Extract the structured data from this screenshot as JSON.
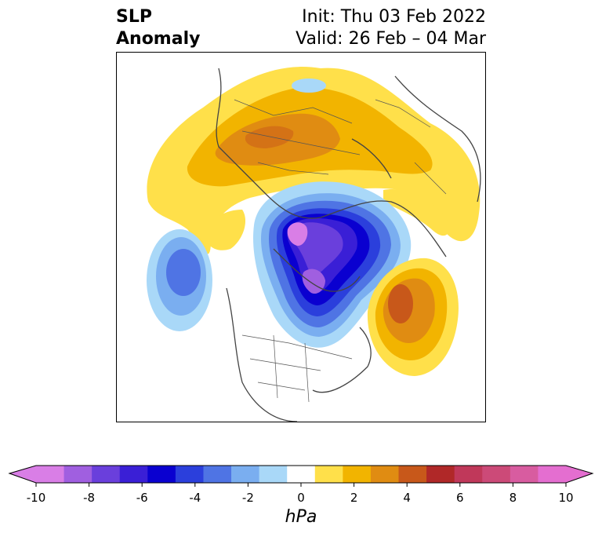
{
  "title": {
    "left_line1": "SLP",
    "left_line2": "Anomaly",
    "right_line1": "Init: Thu 03 Feb 2022",
    "right_line2": "Valid: 26 Feb – 04 Mar"
  },
  "colorbar": {
    "units": "hPa",
    "tick_labels": [
      "-10",
      "-8",
      "-6",
      "-4",
      "-2",
      "0",
      "2",
      "4",
      "6",
      "8",
      "10"
    ],
    "colors": [
      "#d97ee6",
      "#a05fe0",
      "#6a3fdc",
      "#3a1fd6",
      "#0a00d0",
      "#2b3fdc",
      "#4f74e4",
      "#7aaef0",
      "#a9d8f8",
      "#ffffff",
      "#ffe04a",
      "#f2b400",
      "#e08c12",
      "#c8581a",
      "#b02828",
      "#c0385a",
      "#cc4a78",
      "#d85ca0",
      "#e46ed0"
    ],
    "extend_low_color": "#d97ee6",
    "extend_high_color": "#e46ed0"
  },
  "map": {
    "projection": "north-polar",
    "features": [
      "coastlines",
      "country-borders",
      "us-state-borders"
    ]
  }
}
